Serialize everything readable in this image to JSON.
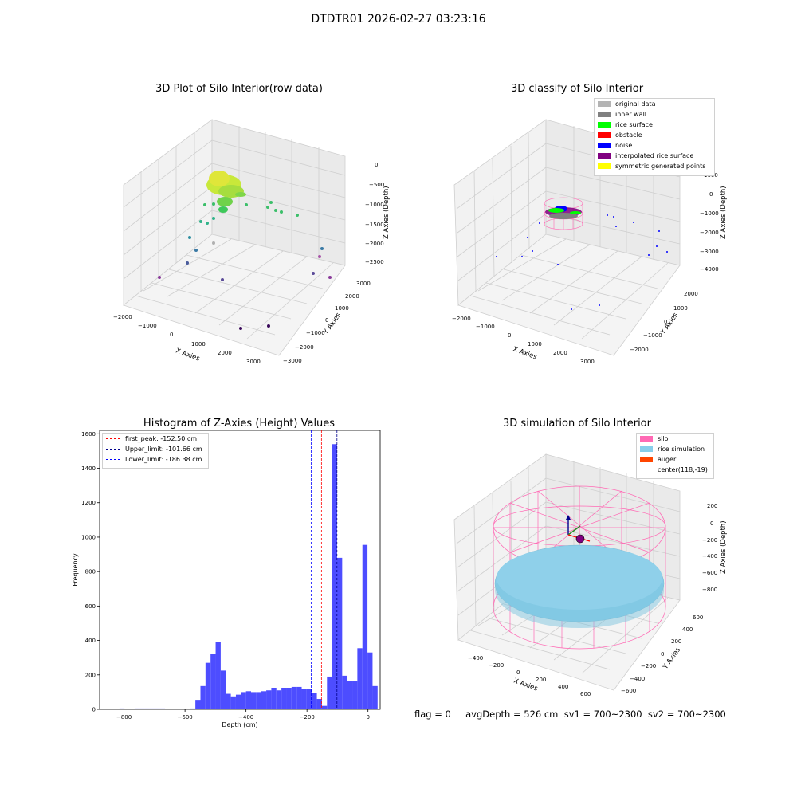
{
  "suptitle": "DTDTR01 2026-02-27 03:23:16",
  "panels": {
    "raw": {
      "title": "3D Plot of Silo Interior(row data)",
      "xlabel": "X Axies",
      "ylabel": "Y Axies",
      "zlabel": "Z Axies (Depth)",
      "xticks": [
        "−2000",
        "−1000",
        "0",
        "1000",
        "2000",
        "3000"
      ],
      "yticks": [
        "−3000",
        "−2000",
        "−1000",
        "0",
        "1000",
        "2000",
        "3000"
      ],
      "zticks": [
        "0",
        "−500",
        "−1000",
        "−1500",
        "−2000",
        "−2500"
      ]
    },
    "classify": {
      "title": "3D classify of Silo Interior",
      "xlabel": "X Axies",
      "ylabel": "Y Axies",
      "zlabel": "Z Axies (Depth)",
      "xticks": [
        "−2000",
        "−1000",
        "0",
        "1000",
        "2000",
        "3000"
      ],
      "yticks": [
        "−2000",
        "−1000",
        "0",
        "1000",
        "2000"
      ],
      "zticks": [
        "1000",
        "0",
        "−1000",
        "−2000",
        "−3000",
        "−4000"
      ],
      "legend": [
        {
          "label": "original data",
          "color": "#b4b4b4"
        },
        {
          "label": "inner wall",
          "color": "#808080"
        },
        {
          "label": "rice surface",
          "color": "#00ff00"
        },
        {
          "label": "obstacle",
          "color": "#ff0000"
        },
        {
          "label": "noise",
          "color": "#0000ff"
        },
        {
          "label": "interpolated rice surface",
          "color": "#800080"
        },
        {
          "label": "symmetric generated points",
          "color": "#ffff00"
        }
      ]
    },
    "hist": {
      "title": "Histogram of Z-Axies (Height) Values",
      "legend": [
        {
          "label": "first_peak: -152.50 cm",
          "color": "#ff0000"
        },
        {
          "label": "Upper_limit: -101.66 cm",
          "color": "#00008b"
        },
        {
          "label": "Lower_limit: -186.38 cm",
          "color": "#0000ff"
        }
      ]
    },
    "sim": {
      "title": "3D simulation of Silo Interior",
      "xlabel": "X Axies",
      "ylabel": "Y Axies",
      "zlabel": "Z Axies (Depth)",
      "xticks": [
        "−400",
        "−200",
        "0",
        "200",
        "400",
        "600"
      ],
      "yticks": [
        "−600",
        "−400",
        "−200",
        "0",
        "200",
        "400",
        "600"
      ],
      "zticks": [
        "200",
        "0",
        "−200",
        "−400",
        "−600",
        "−800"
      ],
      "legend": [
        {
          "label": "silo",
          "color": "#ff69b4"
        },
        {
          "label": "rice simulation",
          "color": "#87ceeb"
        },
        {
          "label": "auger",
          "color": "#ff4500"
        },
        {
          "label": "center(118,-19)",
          "color": ""
        }
      ]
    }
  },
  "footer": "flag = 0     avgDepth = 526 cm  sv1 = 700~2300  sv2 = 700~2300",
  "chart_data": [
    {
      "type": "bar",
      "title": "Histogram of Z-Axies (Height) Values",
      "xlabel": "Depth (cm)",
      "ylabel": "Frequency",
      "xlim": [
        -880,
        40
      ],
      "ylim": [
        0,
        1620
      ],
      "xticks": [
        -800,
        -600,
        -400,
        -200,
        0
      ],
      "yticks": [
        0,
        200,
        400,
        600,
        800,
        1000,
        1200,
        1400,
        1600
      ],
      "bin_start": -815,
      "bin_width": 16.6,
      "values": [
        5,
        0,
        0,
        5,
        5,
        5,
        5,
        5,
        5,
        0,
        0,
        0,
        0,
        0,
        5,
        55,
        135,
        270,
        320,
        390,
        225,
        90,
        75,
        85,
        100,
        105,
        100,
        100,
        105,
        110,
        125,
        110,
        125,
        125,
        130,
        130,
        120,
        120,
        95,
        60,
        20,
        190,
        1540,
        880,
        195,
        165,
        165,
        355,
        955,
        330,
        135
      ],
      "vlines": [
        {
          "label": "first_peak: -152.50 cm",
          "x": -152.5,
          "color": "#ff0000"
        },
        {
          "label": "Upper_limit: -101.66 cm",
          "x": -101.66,
          "color": "#00008b"
        },
        {
          "label": "Lower_limit: -186.38 cm",
          "x": -186.38,
          "color": "#0000ff"
        }
      ],
      "legend_position": "upper-left",
      "bar_color": "#4d4dff"
    }
  ]
}
